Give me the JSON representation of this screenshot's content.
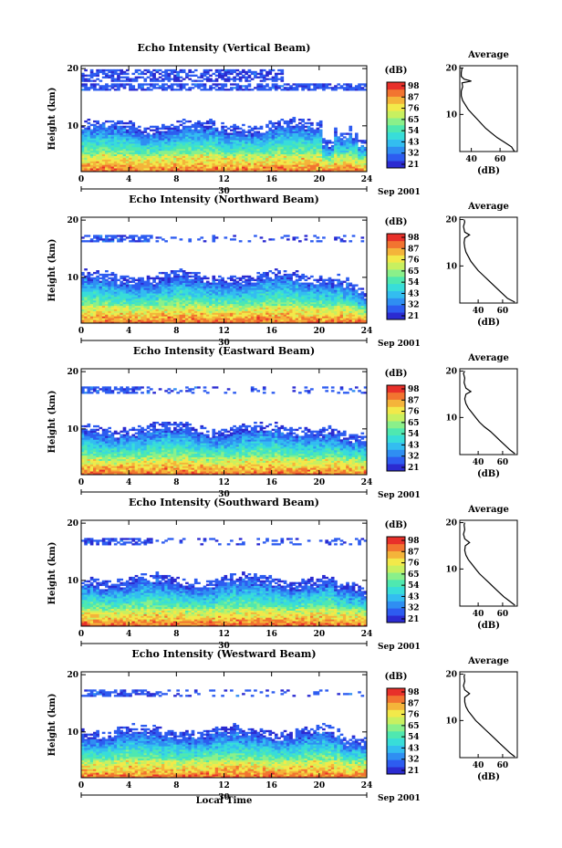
{
  "figure": {
    "xlabel": "Local Time",
    "date_label": "30",
    "month_label": "Sep 2001"
  },
  "colorbar": {
    "unit": "(dB)",
    "colors": [
      "#2b2bd1",
      "#2d5cf0",
      "#2f8ef2",
      "#33bdf0",
      "#38ddd9",
      "#4fe8b0",
      "#8af08a",
      "#c8f060",
      "#f2e94a",
      "#f4b43a",
      "#f27430",
      "#e8302a"
    ]
  },
  "chart_data": [
    {
      "type": "heatmap",
      "title": "Echo Intensity (Vertical Beam)",
      "ylabel": "Height (km)",
      "x_ticks": [
        0,
        4,
        8,
        12,
        16,
        20,
        24
      ],
      "y_ticks": [
        10,
        20
      ],
      "xlim": [
        0,
        24
      ],
      "ylim": [
        2,
        20.5
      ],
      "colorbar_ticks": [
        "98",
        "87",
        "76",
        "65",
        "54",
        "43",
        "32",
        "21"
      ],
      "average": {
        "title": "Average",
        "xlabel": "(dB)",
        "x_ticks": [
          40,
          60
        ],
        "y_ticks": [
          10,
          20
        ],
        "xlim": [
          32,
          72
        ],
        "ylim": [
          2,
          20.5
        ],
        "profile": [
          [
            70,
            2
          ],
          [
            68,
            3
          ],
          [
            63,
            4
          ],
          [
            58,
            5
          ],
          [
            54,
            6
          ],
          [
            50,
            7
          ],
          [
            47,
            8
          ],
          [
            44,
            9
          ],
          [
            41,
            10
          ],
          [
            38,
            11
          ],
          [
            36,
            12
          ],
          [
            34,
            13
          ],
          [
            33,
            14
          ],
          [
            33,
            15
          ],
          [
            34,
            16
          ],
          [
            33.5,
            16.8
          ],
          [
            40,
            17.2
          ],
          [
            35,
            17.6
          ],
          [
            33,
            18.2
          ],
          [
            33,
            19
          ],
          [
            33.5,
            20
          ]
        ]
      }
    },
    {
      "type": "heatmap",
      "title": "Echo Intensity (Northward Beam)",
      "ylabel": "Height (km)",
      "x_ticks": [
        0,
        4,
        8,
        12,
        16,
        20,
        24
      ],
      "y_ticks": [
        10,
        20
      ],
      "xlim": [
        0,
        24
      ],
      "ylim": [
        2,
        20.5
      ],
      "colorbar_ticks": [
        "98",
        "87",
        "76",
        "65",
        "54",
        "43",
        "32",
        "21"
      ],
      "average": {
        "title": "Average",
        "xlabel": "(dB)",
        "x_ticks": [
          40,
          60
        ],
        "y_ticks": [
          10,
          20
        ],
        "xlim": [
          25,
          72
        ],
        "ylim": [
          2,
          20.5
        ],
        "profile": [
          [
            70,
            2.2
          ],
          [
            64,
            3
          ],
          [
            60,
            4
          ],
          [
            56,
            5
          ],
          [
            52,
            6
          ],
          [
            48,
            7
          ],
          [
            44,
            8
          ],
          [
            40,
            9
          ],
          [
            37,
            10
          ],
          [
            34,
            11
          ],
          [
            32,
            12
          ],
          [
            30,
            13
          ],
          [
            29,
            14
          ],
          [
            28.5,
            15
          ],
          [
            29,
            16
          ],
          [
            33,
            16.7
          ],
          [
            29,
            17.3
          ],
          [
            28,
            18.5
          ],
          [
            29,
            19.5
          ],
          [
            28.5,
            20
          ]
        ]
      }
    },
    {
      "type": "heatmap",
      "title": "Echo Intensity (Eastward Beam)",
      "ylabel": "Height (km)",
      "x_ticks": [
        0,
        4,
        8,
        12,
        16,
        20,
        24
      ],
      "y_ticks": [
        10,
        20
      ],
      "xlim": [
        0,
        24
      ],
      "ylim": [
        2,
        20.5
      ],
      "colorbar_ticks": [
        "98",
        "87",
        "76",
        "65",
        "54",
        "43",
        "32",
        "21"
      ],
      "average": {
        "title": "Average",
        "xlabel": "(dB)",
        "x_ticks": [
          40,
          60
        ],
        "y_ticks": [
          10,
          20
        ],
        "xlim": [
          25,
          72
        ],
        "ylim": [
          2,
          20.5
        ],
        "profile": [
          [
            70,
            2.2
          ],
          [
            66,
            3
          ],
          [
            62,
            4
          ],
          [
            58,
            5
          ],
          [
            54,
            6
          ],
          [
            50,
            7
          ],
          [
            45,
            8
          ],
          [
            41,
            9
          ],
          [
            38,
            10
          ],
          [
            35,
            11
          ],
          [
            32,
            12
          ],
          [
            30,
            13
          ],
          [
            29,
            14
          ],
          [
            30,
            15
          ],
          [
            34,
            15.6
          ],
          [
            30,
            16.3
          ],
          [
            28.5,
            17.5
          ],
          [
            29,
            18.5
          ],
          [
            28,
            19.5
          ],
          [
            29,
            20
          ]
        ]
      }
    },
    {
      "type": "heatmap",
      "title": "Echo Intensity (Southward Beam)",
      "ylabel": "Height (km)",
      "x_ticks": [
        0,
        4,
        8,
        12,
        16,
        20,
        24
      ],
      "y_ticks": [
        10,
        20
      ],
      "xlim": [
        0,
        24
      ],
      "ylim": [
        2,
        20.5
      ],
      "colorbar_ticks": [
        "98",
        "87",
        "76",
        "65",
        "54",
        "43",
        "32",
        "21"
      ],
      "average": {
        "title": "Average",
        "xlabel": "(dB)",
        "x_ticks": [
          40,
          60
        ],
        "y_ticks": [
          10,
          20
        ],
        "xlim": [
          25,
          72
        ],
        "ylim": [
          2,
          20.5
        ],
        "profile": [
          [
            70,
            2.2
          ],
          [
            66,
            3
          ],
          [
            61,
            4
          ],
          [
            57,
            5
          ],
          [
            53,
            6
          ],
          [
            49,
            7
          ],
          [
            45,
            8
          ],
          [
            41,
            9
          ],
          [
            38,
            10
          ],
          [
            35,
            11
          ],
          [
            32,
            12
          ],
          [
            30,
            13
          ],
          [
            29,
            14
          ],
          [
            29.5,
            15
          ],
          [
            33,
            15.7
          ],
          [
            29,
            16.5
          ],
          [
            28,
            17.5
          ],
          [
            29,
            18.5
          ],
          [
            28.5,
            19.5
          ],
          [
            29,
            20
          ]
        ]
      }
    },
    {
      "type": "heatmap",
      "title": "Echo Intensity (Westward Beam)",
      "ylabel": "Height (km)",
      "x_ticks": [
        0,
        4,
        8,
        12,
        16,
        20,
        24
      ],
      "y_ticks": [
        10,
        20
      ],
      "xlim": [
        0,
        24
      ],
      "ylim": [
        2,
        20.5
      ],
      "colorbar_ticks": [
        "98",
        "87",
        "76",
        "65",
        "54",
        "43",
        "32",
        "21"
      ],
      "average": {
        "title": "Average",
        "xlabel": "(dB)",
        "x_ticks": [
          40,
          60
        ],
        "y_ticks": [
          10,
          20
        ],
        "xlim": [
          25,
          72
        ],
        "ylim": [
          2,
          20.5
        ],
        "profile": [
          [
            70,
            2.2
          ],
          [
            66,
            3
          ],
          [
            62,
            4
          ],
          [
            58,
            5
          ],
          [
            54,
            6
          ],
          [
            50,
            7
          ],
          [
            46,
            8
          ],
          [
            42,
            9
          ],
          [
            38,
            10
          ],
          [
            35,
            11
          ],
          [
            32,
            12
          ],
          [
            30,
            13
          ],
          [
            29,
            14
          ],
          [
            29,
            15
          ],
          [
            33,
            15.8
          ],
          [
            29,
            16.6
          ],
          [
            28,
            17.5
          ],
          [
            29,
            18.5
          ],
          [
            28.5,
            19.5
          ],
          [
            29,
            20
          ]
        ]
      }
    }
  ]
}
